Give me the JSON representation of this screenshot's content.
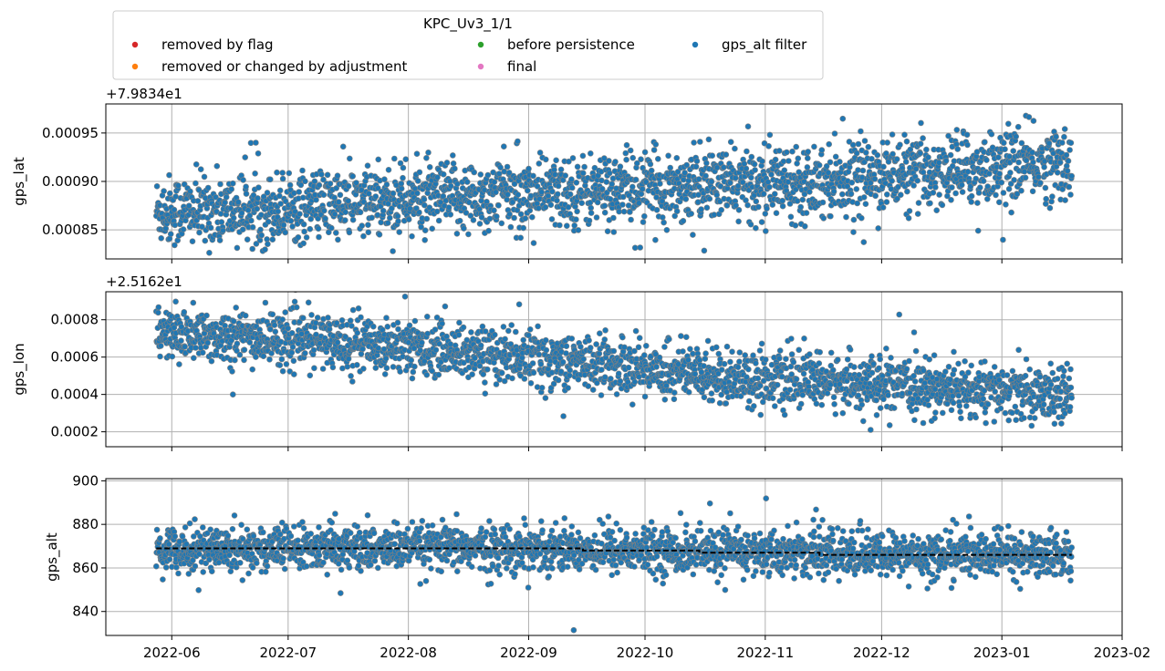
{
  "legend": {
    "title": "KPC_Uv3_1/1",
    "placement": "top-left, above plots",
    "entries": [
      {
        "label": "removed by flag",
        "color": "#d62728"
      },
      {
        "label": "removed or changed by adjustment",
        "color": "#ff7f0e"
      },
      {
        "label": "before persistence",
        "color": "#2ca02c"
      },
      {
        "label": "final",
        "color": "#e377c2"
      },
      {
        "label": "gps_alt filter",
        "color": "#1f77b4"
      }
    ]
  },
  "chart_data": [
    {
      "type": "scatter",
      "ylabel": "gps_lat",
      "offset_label": "+7.9834e1",
      "y_offset": 79.834,
      "ylim": [
        0.00082,
        0.00098
      ],
      "yticks": [
        0.00085,
        0.0009,
        0.00095
      ],
      "ytick_labels": [
        "0.00085",
        "0.00090",
        "0.00095"
      ],
      "xlim": [
        "2022-05-15",
        "2023-02-01"
      ],
      "grid": true,
      "series": [
        {
          "color": "#1f77b4",
          "edge": "#808080",
          "x": [
            "2022-05-28",
            "2022-06-15",
            "2022-07-01",
            "2022-07-15",
            "2022-08-01",
            "2022-08-15",
            "2022-09-01",
            "2022-09-15",
            "2022-10-01",
            "2022-10-15",
            "2022-11-01",
            "2022-11-15",
            "2022-12-01",
            "2022-12-15",
            "2023-01-01",
            "2023-01-19"
          ],
          "y": [
            0.00087,
            0.00087,
            0.000873,
            0.000877,
            0.00088,
            0.000884,
            0.000887,
            0.00089,
            0.000893,
            0.000896,
            0.000899,
            0.000902,
            0.000906,
            0.00091,
            0.000915,
            0.00092
          ],
          "spread": 1.8e-05
        }
      ]
    },
    {
      "type": "scatter",
      "ylabel": "gps_lon",
      "offset_label": "+2.5162e1",
      "y_offset": 25.162,
      "ylim": [
        0.00012,
        0.00095
      ],
      "yticks": [
        0.0002,
        0.0004,
        0.0006,
        0.0008
      ],
      "ytick_labels": [
        "0.0002",
        "0.0004",
        "0.0006",
        "0.0008"
      ],
      "xlim": [
        "2022-05-15",
        "2023-02-01"
      ],
      "grid": true,
      "series": [
        {
          "color": "#1f77b4",
          "edge": "#808080",
          "x": [
            "2022-05-28",
            "2022-06-15",
            "2022-07-01",
            "2022-07-15",
            "2022-08-01",
            "2022-08-15",
            "2022-09-01",
            "2022-09-15",
            "2022-10-01",
            "2022-10-15",
            "2022-11-01",
            "2022-11-15",
            "2022-12-01",
            "2022-12-15",
            "2023-01-01",
            "2023-01-19"
          ],
          "y": [
            0.00072,
            0.00071,
            0.000695,
            0.00068,
            0.00066,
            0.00063,
            0.0006,
            0.00057,
            0.00054,
            0.00051,
            0.00048,
            0.00047,
            0.00045,
            0.00043,
            0.00041,
            0.00039
          ],
          "spread": 7e-05
        }
      ]
    },
    {
      "type": "scatter",
      "ylabel": "gps_alt",
      "offset_label": "",
      "y_offset": 0,
      "ylim": [
        829,
        901
      ],
      "yticks": [
        840,
        860,
        880,
        900
      ],
      "ytick_labels": [
        "840",
        "860",
        "880",
        "900"
      ],
      "xlim": [
        "2022-05-15",
        "2023-02-01"
      ],
      "xticks": [
        "2022-06-01",
        "2022-07-01",
        "2022-08-01",
        "2022-09-01",
        "2022-10-01",
        "2022-11-01",
        "2022-12-01",
        "2023-01-01",
        "2023-02-01"
      ],
      "xtick_labels": [
        "2022-06",
        "2022-07",
        "2022-08",
        "2022-09",
        "2022-10",
        "2022-11",
        "2022-12",
        "2023-01",
        "2023-02"
      ],
      "grid": true,
      "series": [
        {
          "color": "#1f77b4",
          "edge": "#808080",
          "x": [
            "2022-05-28",
            "2022-07-01",
            "2022-08-01",
            "2022-09-01",
            "2022-10-01",
            "2022-11-01",
            "2022-12-01",
            "2023-01-01",
            "2023-01-19"
          ],
          "y": [
            869,
            869,
            869,
            869,
            868,
            867,
            866,
            866,
            866
          ],
          "spread": 5
        }
      ],
      "filter_line": {
        "style": "dashed",
        "color": "#000000",
        "steps": [
          {
            "from": "2022-05-28",
            "to": "2022-09-15",
            "y": 869
          },
          {
            "from": "2022-09-15",
            "to": "2022-10-15",
            "y": 868
          },
          {
            "from": "2022-10-15",
            "to": "2022-11-15",
            "y": 867
          },
          {
            "from": "2022-11-15",
            "to": "2023-01-19",
            "y": 866
          }
        ]
      }
    }
  ]
}
